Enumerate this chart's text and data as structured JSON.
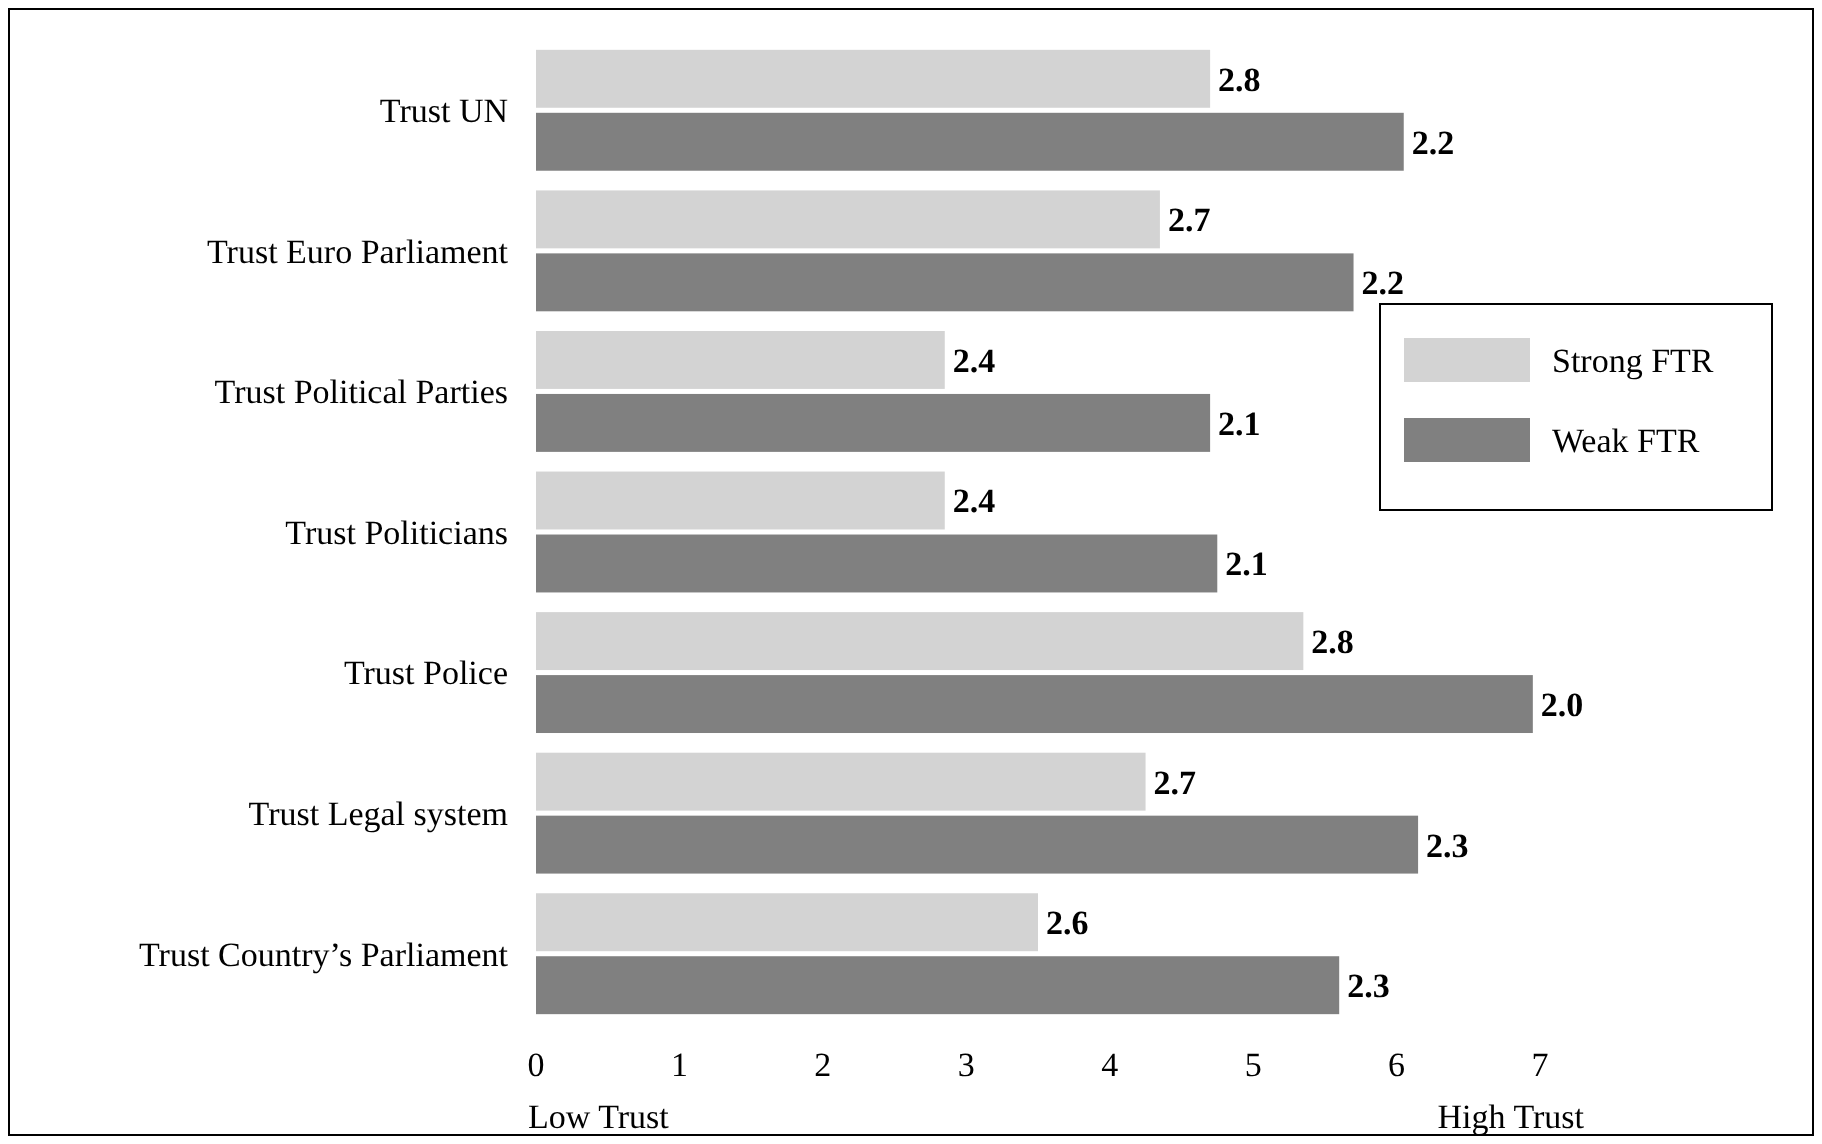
{
  "chart_data": {
    "type": "bar",
    "orientation": "horizontal",
    "categories": [
      "Trust UN",
      "Trust Euro Parliament",
      "Trust Political Parties",
      "Trust Politicians",
      "Trust Police",
      "Trust Legal system",
      "Trust Country’s Parliament"
    ],
    "series": [
      {
        "name": "Strong FTR",
        "color": "#d3d3d3",
        "values": [
          4.7,
          4.35,
          2.85,
          2.85,
          5.35,
          4.25,
          3.5
        ]
      },
      {
        "name": "Weak FTR",
        "color": "#808080",
        "values": [
          6.05,
          5.7,
          4.7,
          4.75,
          6.95,
          6.15,
          5.6
        ]
      }
    ],
    "xlim": [
      0,
      7
    ],
    "xticks": [
      0,
      1,
      2,
      3,
      4,
      5,
      6,
      7
    ],
    "annotations": [
      "Low Trust",
      "High Trust",
      {
        "text": "2.8",
        "x": 4.7,
        "y": "Trust UN"
      },
      {
        "text": "2.2",
        "x": 6.05,
        "y": "Trust UN"
      },
      {
        "text": "2.7",
        "x": 4.35,
        "y": "Trust Euro Parliament"
      },
      {
        "text": "2.2",
        "x": 5.7,
        "y": "Trust Euro Parliament"
      },
      {
        "text": "2.4",
        "x": 2.85,
        "y": "Trust Political Parties"
      },
      {
        "text": "2.1",
        "x": 4.7,
        "y": "Trust Political Parties"
      },
      {
        "text": "2.4",
        "x": 2.85,
        "y": "Trust Politicians"
      },
      {
        "text": "2.1",
        "x": 4.75,
        "y": "Trust Politicians"
      },
      {
        "text": "2.8",
        "x": 5.35,
        "y": "Trust Police"
      },
      {
        "text": "2.0",
        "x": 6.95,
        "y": "Trust Police"
      },
      {
        "text": "2.7",
        "x": 4.25,
        "y": "Trust Legal system"
      },
      {
        "text": "2.3",
        "x": 6.15,
        "y": "Trust Legal system"
      },
      {
        "text": "2.6",
        "x": 3.5,
        "y": "Trust Country’s Parliament"
      },
      {
        "text": "2.3",
        "x": 5.6,
        "y": "Trust Country’s Parliament"
      }
    ],
    "grid": false,
    "legend": "right"
  }
}
